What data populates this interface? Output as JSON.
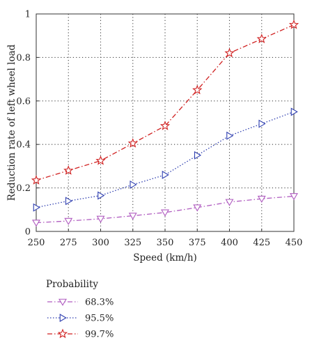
{
  "chart_data": {
    "type": "line",
    "title": "",
    "xlabel": "Speed (km/h)",
    "ylabel": "Reduction rate of left wheel load",
    "x": [
      250,
      275,
      300,
      325,
      350,
      375,
      400,
      425,
      450
    ],
    "xlim": [
      250,
      450
    ],
    "ylim": [
      0,
      1
    ],
    "xticks": [
      "250",
      "275",
      "300",
      "325",
      "350",
      "375",
      "400",
      "425",
      "450"
    ],
    "yticks": [
      "0",
      "0.2",
      "0.4",
      "0.6",
      "0.8",
      "1"
    ],
    "grid": true,
    "legend_title": "Probability",
    "legend_position": "below",
    "series": [
      {
        "name": "68.3%",
        "color": "#b05cc0",
        "line_style": "dash-dot",
        "marker": "triangle-down",
        "values": [
          0.04,
          0.048,
          0.058,
          0.072,
          0.087,
          0.11,
          0.135,
          0.15,
          0.162
        ]
      },
      {
        "name": "95.5%",
        "color": "#2f3fb0",
        "line_style": "dotted",
        "marker": "triangle-right",
        "values": [
          0.11,
          0.14,
          0.165,
          0.215,
          0.26,
          0.35,
          0.44,
          0.495,
          0.55
        ]
      },
      {
        "name": "99.7%",
        "color": "#d02020",
        "line_style": "dash-dot",
        "marker": "star",
        "values": [
          0.235,
          0.28,
          0.325,
          0.405,
          0.485,
          0.65,
          0.82,
          0.885,
          0.95
        ]
      }
    ]
  }
}
